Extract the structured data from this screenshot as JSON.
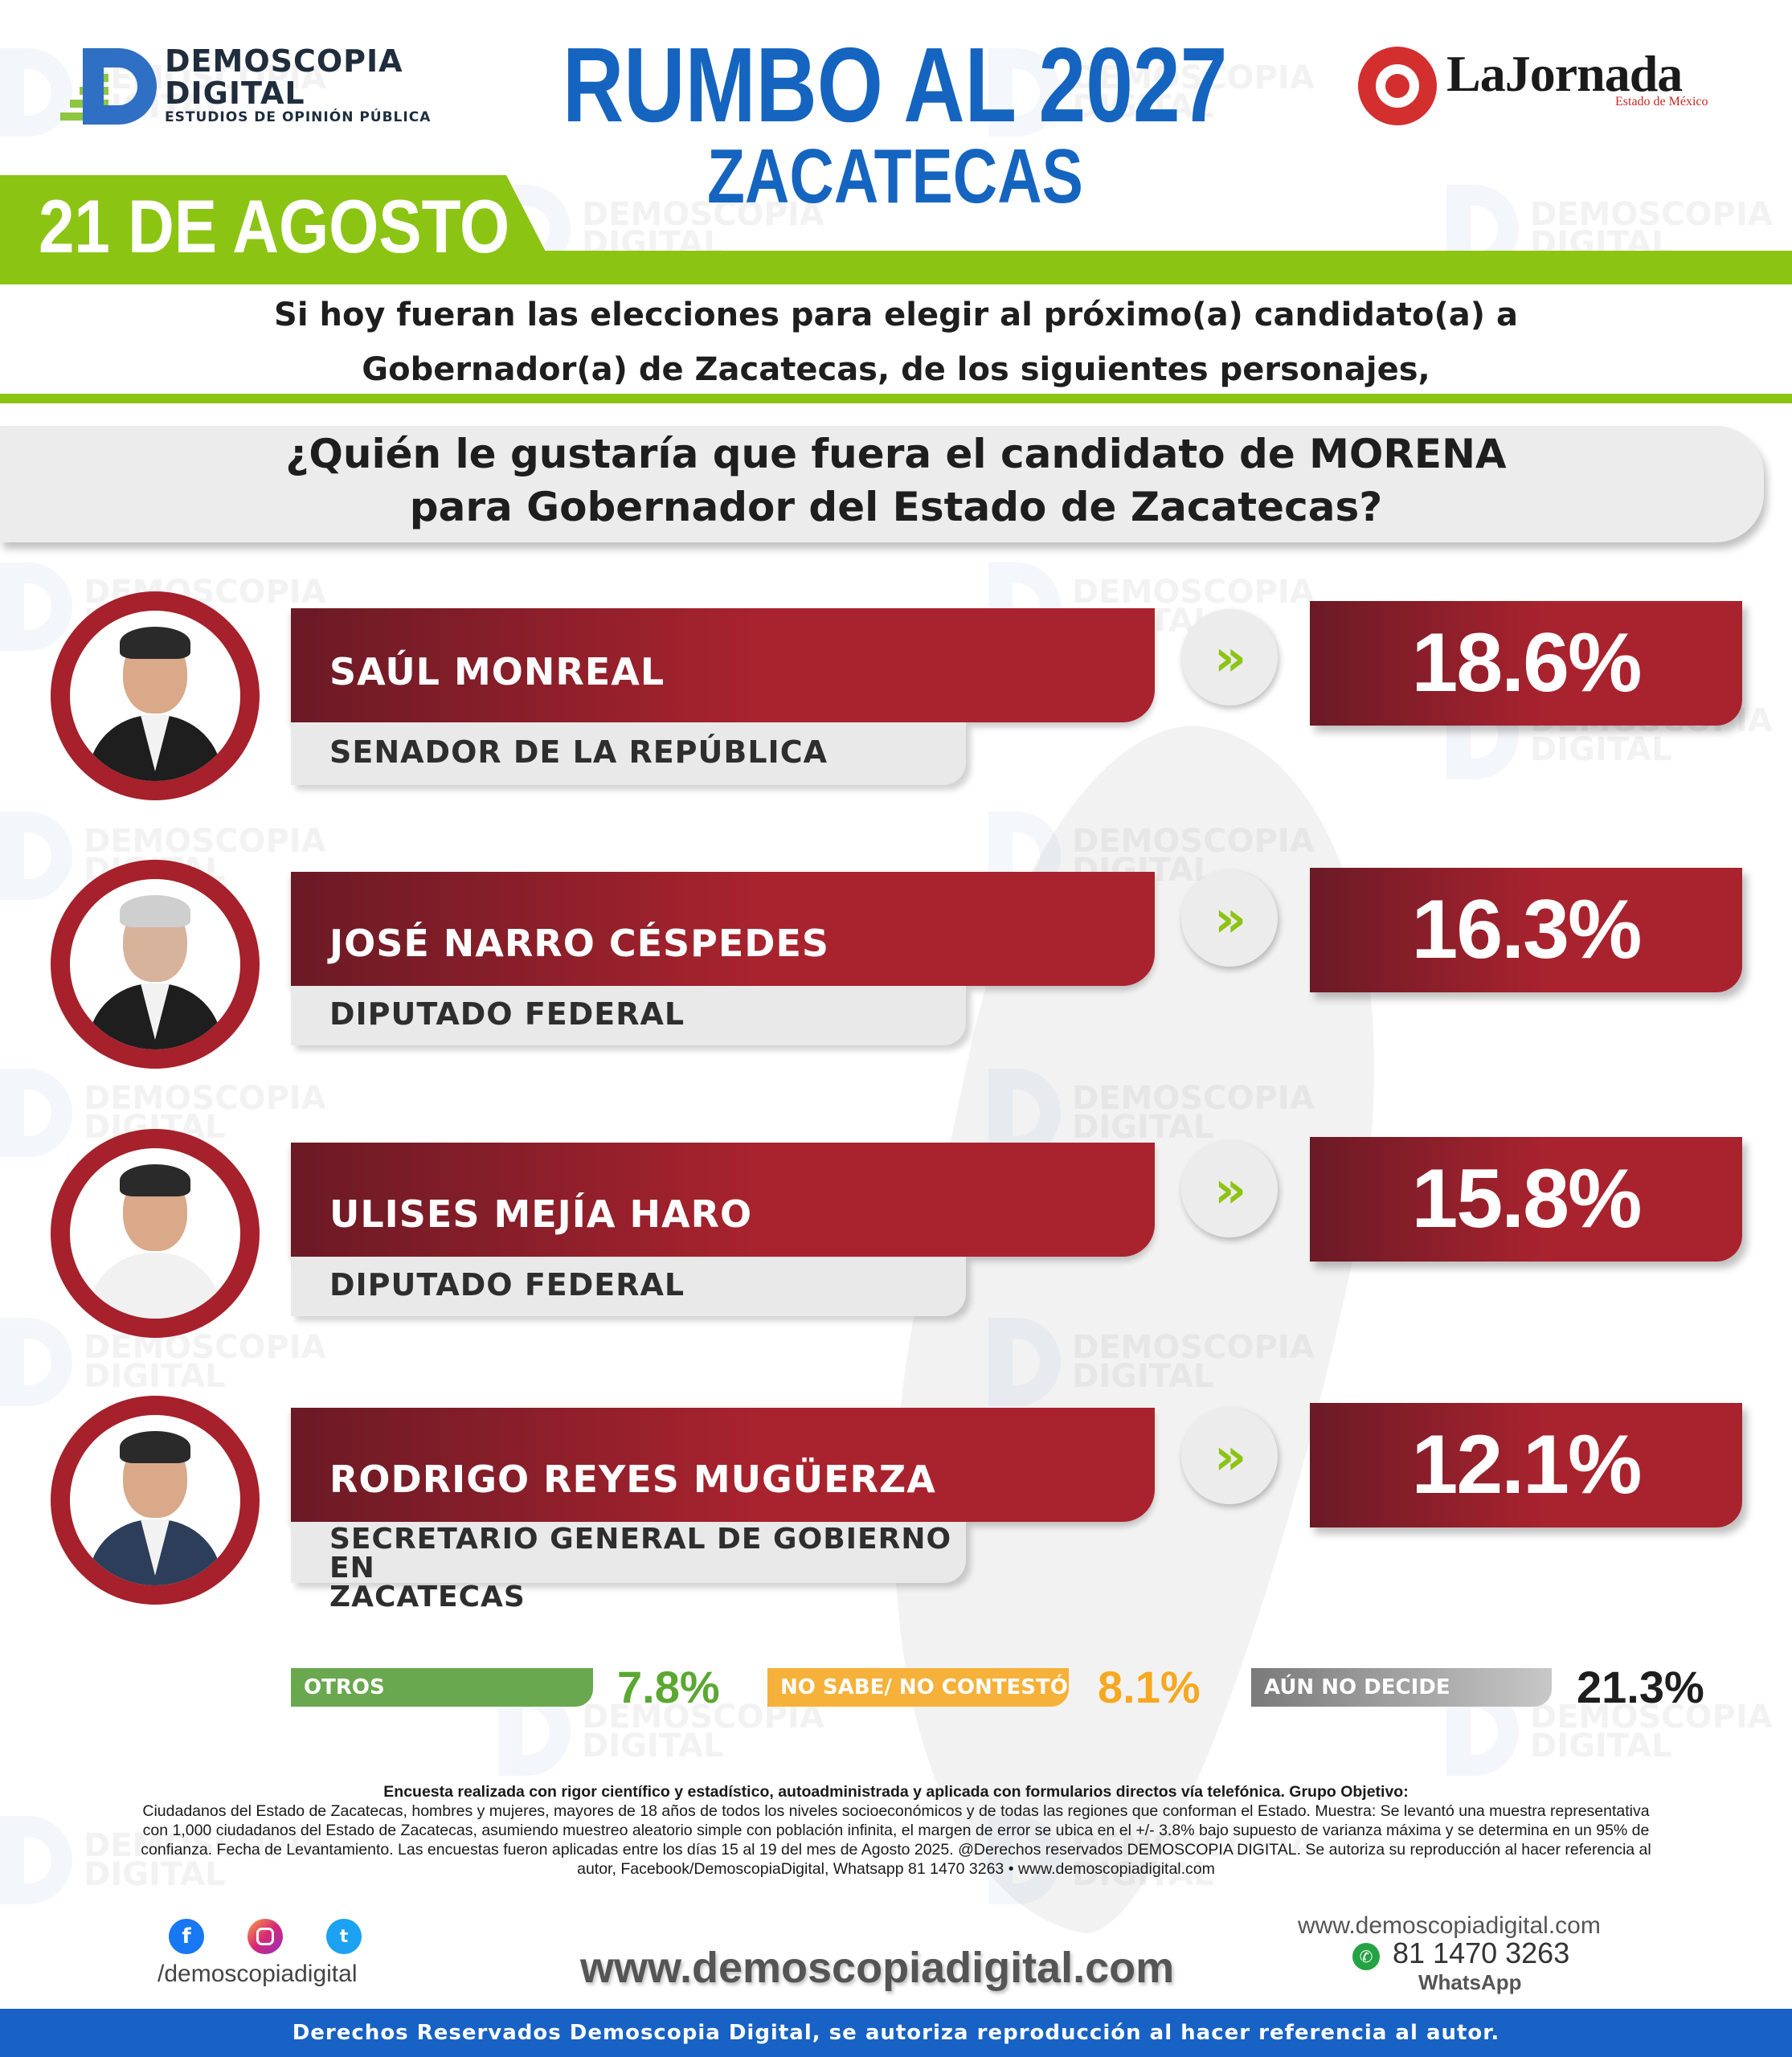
{
  "header": {
    "brand_name_line1": "DEMOSCOPIA",
    "brand_name_line2": "DIGITAL",
    "brand_tagline": "ESTUDIOS DE OPINIÓN PÚBLICA",
    "title": "RUMBO AL 2027",
    "subtitle": "ZACATECAS",
    "date": "21 DE AGOSTO",
    "partner_name": "LaJornada",
    "partner_region": "Estado de México"
  },
  "intro": {
    "line1": "Si hoy fueran las elecciones para elegir al próximo(a) candidato(a) a",
    "line2": "Gobernador(a) de Zacatecas, de los siguientes personajes,"
  },
  "question": {
    "line1": "¿Quién le gustaría que fuera el candidato de MORENA",
    "line2": "para Gobernador del Estado de Zacatecas?"
  },
  "candidates": [
    {
      "name": "SAÚL MONREAL",
      "role": "SENADOR DE LA REPÚBLICA",
      "percent": "18.6%",
      "value": 18.6
    },
    {
      "name": "JOSÉ NARRO CÉSPEDES",
      "role": "DIPUTADO FEDERAL",
      "percent": "16.3%",
      "value": 16.3
    },
    {
      "name": "ULISES MEJÍA HARO",
      "role": "DIPUTADO FEDERAL",
      "percent": "15.8%",
      "value": 15.8
    },
    {
      "name": "RODRIGO REYES MUGÜERZA",
      "role_line1": "SECRETARIO GENERAL DE GOBIERNO EN",
      "role_line2": "ZACATECAS",
      "percent": "12.1%",
      "value": 12.1
    }
  ],
  "summary": {
    "others": {
      "label": "OTROS",
      "percent": "7.8%",
      "color": "#6aa84f"
    },
    "no_answer": {
      "label": "NO SABE/ NO CONTESTÓ",
      "percent": "8.1%",
      "color": "#f6b13b"
    },
    "undecided": {
      "label": "AÚN NO DECIDE",
      "percent": "21.3%",
      "color": "#9a9a9a"
    }
  },
  "methodology": [
    "Encuesta realizada con rigor científico y estadístico, autoadministrada y aplicada con formularios directos vía telefónica. Grupo Objetivo:",
    "Ciudadanos del Estado de Zacatecas, hombres y mujeres, mayores de 18 años de todos los niveles socioeconómicos y de todas las regiones que conforman el Estado. Muestra: Se levantó una muestra representativa",
    "con 1,000 ciudadanos del Estado de Zacatecas, asumiendo muestreo aleatorio simple con población infinita, el margen de error se ubica en el +/- 3.8% bajo supuesto de varianza máxima y se determina en un 95% de",
    "confianza. Fecha de Levantamiento. Las encuestas fueron aplicadas entre los días 15 al 19 del mes de Agosto 2025. @Derechos reservados DEMOSCOPIA DIGITAL. Se autoriza su reproducción al hacer referencia al",
    "autor, Facebook/DemoscopiaDigital, Whatsapp 81 1470 3263 • www.demoscopiadigital.com"
  ],
  "contact": {
    "social_handle": "/demoscopiadigital",
    "website_big": "www.demoscopiadigital.com",
    "website_small": "www.demoscopiadigital.com",
    "whatsapp_number": "81 1470 3263",
    "whatsapp_label": "WhatsApp"
  },
  "icons": {
    "facebook": "facebook-icon",
    "instagram": "instagram-icon",
    "twitter": "twitter-icon",
    "whatsapp": "whatsapp-icon",
    "arrow": "double-chevron-right-icon"
  },
  "colors": {
    "title_blue": "#1565c0",
    "accent_green": "#8cc414",
    "bar_red": "#a9232e",
    "bar_red_dark": "#6b1a25",
    "footer_blue": "#1762c4"
  },
  "footer": {
    "text": "Derechos Reservados Demoscopia Digital, se autoriza reproducción al hacer referencia al autor."
  }
}
